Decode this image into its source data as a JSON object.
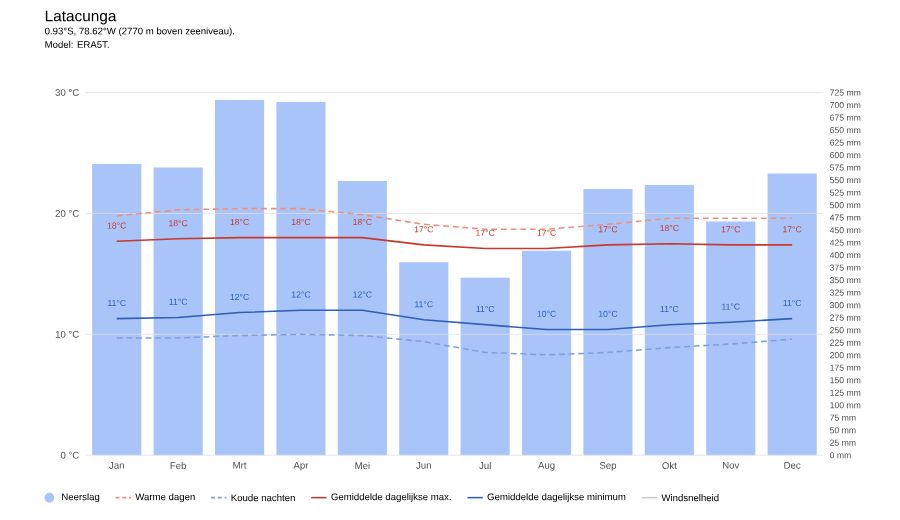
{
  "chart_data": {
    "type": "line",
    "title": "Latacunga",
    "subtitle": "0.93°S, 78.62°W (2770 m boven zeeniveau).",
    "annotations": [
      "Model: ERA5T."
    ],
    "categories": [
      "Jan",
      "Feb",
      "Mrt",
      "Apr",
      "Mei",
      "Jun",
      "Jul",
      "Aug",
      "Sep",
      "Okt",
      "Nov",
      "Dec"
    ],
    "ylim": [
      0,
      30
    ],
    "yticks": [
      {
        "value": 0,
        "label": "0 °C"
      },
      {
        "value": 10,
        "label": "10 °C"
      },
      {
        "value": 20,
        "label": "20 °C"
      },
      {
        "value": 30,
        "label": "30 °C"
      }
    ],
    "y2lim": [
      0,
      725
    ],
    "y2ticks": [
      {
        "value": 0,
        "label": "0 mm"
      },
      {
        "value": 25,
        "label": "25 mm"
      },
      {
        "value": 50,
        "label": "50 mm"
      },
      {
        "value": 75,
        "label": "75 mm"
      },
      {
        "value": 100,
        "label": "100 mm"
      },
      {
        "value": 125,
        "label": "125 mm"
      },
      {
        "value": 150,
        "label": "150 mm"
      },
      {
        "value": 175,
        "label": "175 mm"
      },
      {
        "value": 200,
        "label": "200 mm"
      },
      {
        "value": 225,
        "label": "225 mm"
      },
      {
        "value": 250,
        "label": "250 mm"
      },
      {
        "value": 275,
        "label": "275 mm"
      },
      {
        "value": 300,
        "label": "300 mm"
      },
      {
        "value": 325,
        "label": "325 mm"
      },
      {
        "value": 350,
        "label": "350 mm"
      },
      {
        "value": 375,
        "label": "375 mm"
      },
      {
        "value": 400,
        "label": "400 mm"
      },
      {
        "value": 425,
        "label": "425 mm"
      },
      {
        "value": 450,
        "label": "450 mm"
      },
      {
        "value": 475,
        "label": "475 mm"
      },
      {
        "value": 500,
        "label": "500 mm"
      },
      {
        "value": 525,
        "label": "525 mm"
      },
      {
        "value": 550,
        "label": "550 mm"
      },
      {
        "value": 575,
        "label": "575 mm"
      },
      {
        "value": 600,
        "label": "600 mm"
      },
      {
        "value": 625,
        "label": "625 mm"
      },
      {
        "value": 650,
        "label": "650 mm"
      },
      {
        "value": 675,
        "label": "675 mm"
      },
      {
        "value": 700,
        "label": "700 mm"
      },
      {
        "value": 725,
        "label": "725 mm"
      }
    ],
    "grid": "y",
    "legend": "bottom",
    "marker": "none",
    "series": [
      {
        "name": "Neerslag",
        "type": "bar",
        "axis": "y2",
        "color": "#a8c4f8",
        "values": [
          582,
          575,
          710,
          706,
          548,
          386,
          355,
          409,
          532,
          540,
          467,
          563
        ]
      },
      {
        "name": "Warme dagen",
        "line_style": "dashed",
        "color": "#f0907c",
        "values": [
          19.8,
          20.3,
          20.4,
          20.4,
          19.9,
          19.1,
          18.7,
          18.7,
          19.1,
          19.6,
          19.6,
          19.6
        ]
      },
      {
        "name": "Koude nachten",
        "line_style": "dashed",
        "color": "#7d9ee0",
        "values": [
          9.7,
          9.7,
          9.9,
          10.0,
          9.9,
          9.4,
          8.5,
          8.3,
          8.5,
          8.9,
          9.2,
          9.6
        ]
      },
      {
        "name": "Gemiddelde dagelijkse max.",
        "line_style": "solid",
        "color": "#c8392b",
        "values": [
          17.7,
          17.9,
          18.0,
          18.0,
          18.0,
          17.4,
          17.1,
          17.1,
          17.4,
          17.5,
          17.4,
          17.4
        ],
        "value_labels": [
          "18°C",
          "18°C",
          "18°C",
          "18°C",
          "18°C",
          "17°C",
          "17°C",
          "17°C",
          "17°C",
          "18°C",
          "17°C",
          "17°C"
        ]
      },
      {
        "name": "Gemiddelde dagelijkse minimum",
        "line_style": "solid",
        "color": "#2f5fb8",
        "values": [
          11.3,
          11.4,
          11.8,
          12.0,
          12.0,
          11.2,
          10.8,
          10.4,
          10.4,
          10.8,
          11.0,
          11.3
        ],
        "value_labels": [
          "11°C",
          "11°C",
          "12°C",
          "12°C",
          "12°C",
          "11°C",
          "11°C",
          "10°C",
          "10°C",
          "11°C",
          "11°C",
          "11°C"
        ]
      },
      {
        "name": "Windsnelheid",
        "line_style": "solid",
        "color": "#c8c8c8",
        "values": [
          null,
          null,
          null,
          null,
          null,
          null,
          null,
          null,
          null,
          null,
          null,
          null
        ]
      }
    ]
  }
}
